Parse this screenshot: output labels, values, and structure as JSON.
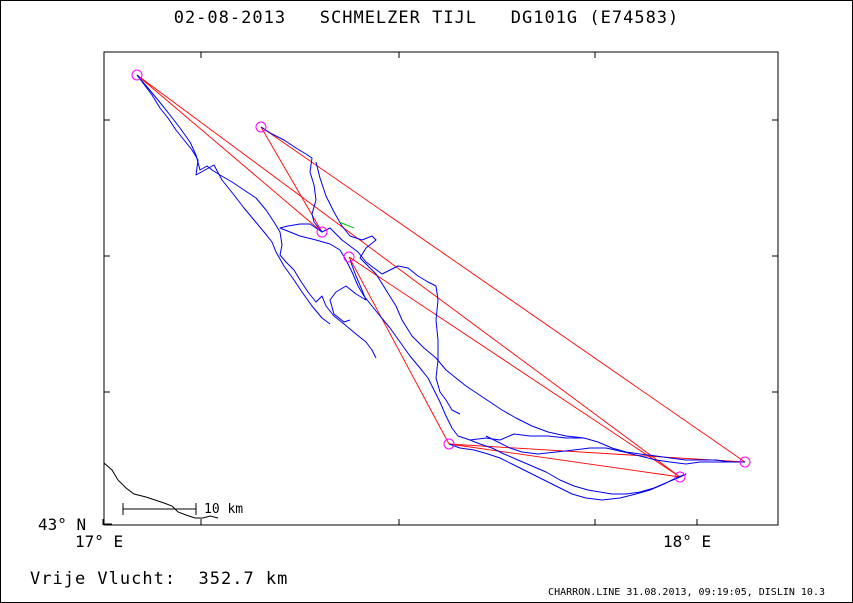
{
  "header": {
    "title": "02-08-2013   SCHMELZER TIJL   DG101G (E74583)"
  },
  "axes": {
    "lon_labels": [
      "17° E",
      "18° E"
    ],
    "lat_labels": [
      "43° N"
    ]
  },
  "scale_bar": {
    "label": "10 km"
  },
  "footer": {
    "left": "Vrije Vlucht:  352.7 km",
    "right": "CHARRON.LINE 31.08.2013, 09:19:05, DISLIN 10.3"
  },
  "colors": {
    "track": "#0000ee",
    "task_lines": "#ff0000",
    "turnpoints": "#ff00ff",
    "coastline": "#000000",
    "frame": "#000000"
  },
  "turnpoints_count": 7
}
